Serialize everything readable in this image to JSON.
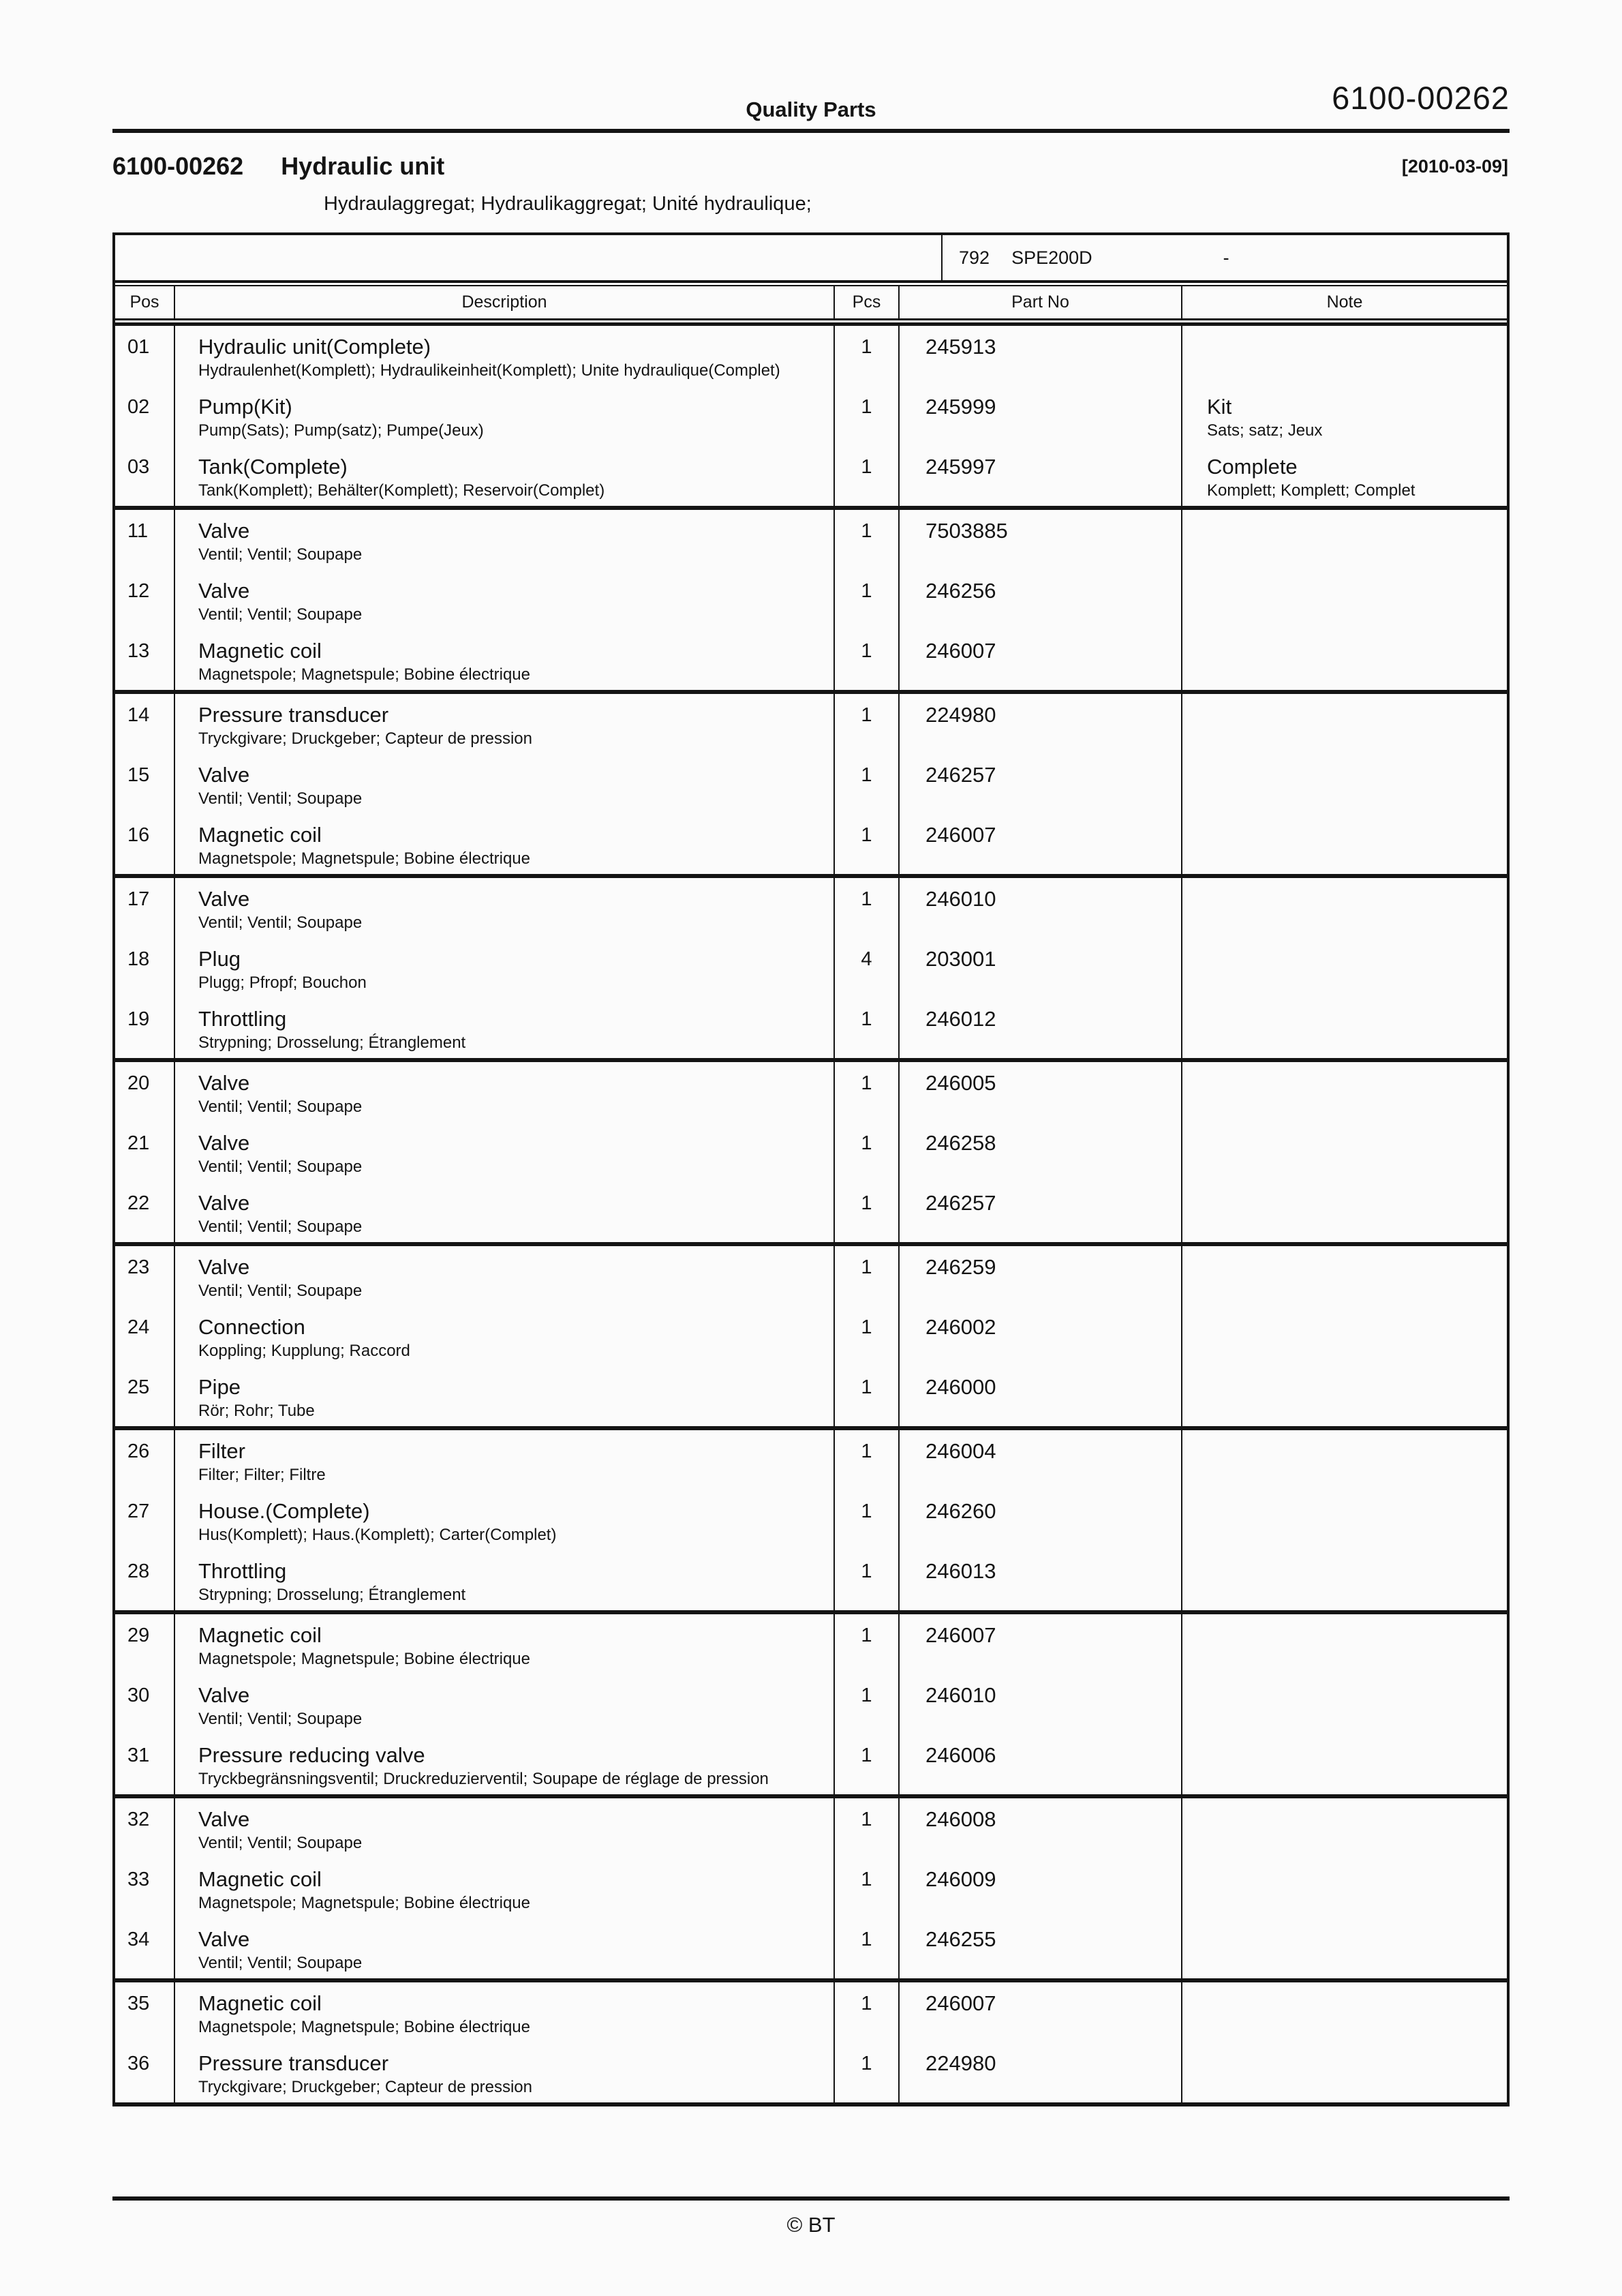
{
  "page": {
    "header_center": "Quality Parts",
    "header_doc_no": "6100-00262",
    "title_no": "6100-00262",
    "title": "Hydraulic unit",
    "title_date": "[2010-03-09]",
    "subtitle": "Hydraulaggregat; Hydraulikaggregat; Unité hydraulique;",
    "footer": "© BT"
  },
  "table": {
    "model": {
      "code": "792",
      "name": "SPE200D",
      "dash": "-"
    },
    "columns": {
      "pos": "Pos",
      "description": "Description",
      "pcs": "Pcs",
      "part_no": "Part No",
      "note": "Note"
    },
    "rows": [
      {
        "pos": "01",
        "desc": "Hydraulic unit(Complete)",
        "sub": "Hydraulenhet(Komplett); Hydraulikeinheit(Komplett); Unite hydraulique(Complet)",
        "pcs": "1",
        "part": "245913"
      },
      {
        "pos": "02",
        "desc": "Pump(Kit)",
        "sub": "Pump(Sats); Pump(satz); Pumpe(Jeux)",
        "pcs": "1",
        "part": "245999",
        "note": "Kit",
        "note_sub": "Sats; satz; Jeux"
      },
      {
        "pos": "03",
        "desc": "Tank(Complete)",
        "sub": "Tank(Komplett); Behälter(Komplett); Reservoir(Complet)",
        "pcs": "1",
        "part": "245997",
        "note": "Complete",
        "note_sub": "Komplett; Komplett; Complet"
      },
      {
        "pos": "11",
        "desc": "Valve",
        "sub": "Ventil; Ventil; Soupape",
        "pcs": "1",
        "part": "7503885"
      },
      {
        "pos": "12",
        "desc": "Valve",
        "sub": "Ventil; Ventil; Soupape",
        "pcs": "1",
        "part": "246256"
      },
      {
        "pos": "13",
        "desc": "Magnetic coil",
        "sub": "Magnetspole; Magnetspule; Bobine électrique",
        "pcs": "1",
        "part": "246007"
      },
      {
        "pos": "14",
        "desc": "Pressure transducer",
        "sub": "Tryckgivare; Druckgeber; Capteur de pression",
        "pcs": "1",
        "part": "224980"
      },
      {
        "pos": "15",
        "desc": "Valve",
        "sub": "Ventil; Ventil; Soupape",
        "pcs": "1",
        "part": "246257"
      },
      {
        "pos": "16",
        "desc": "Magnetic coil",
        "sub": "Magnetspole; Magnetspule; Bobine électrique",
        "pcs": "1",
        "part": "246007"
      },
      {
        "pos": "17",
        "desc": "Valve",
        "sub": "Ventil; Ventil; Soupape",
        "pcs": "1",
        "part": "246010"
      },
      {
        "pos": "18",
        "desc": "Plug",
        "sub": "Plugg; Pfropf; Bouchon",
        "pcs": "4",
        "part": "203001"
      },
      {
        "pos": "19",
        "desc": "Throttling",
        "sub": "Strypning; Drosselung; Étranglement",
        "pcs": "1",
        "part": "246012"
      },
      {
        "pos": "20",
        "desc": "Valve",
        "sub": "Ventil; Ventil; Soupape",
        "pcs": "1",
        "part": "246005"
      },
      {
        "pos": "21",
        "desc": "Valve",
        "sub": "Ventil; Ventil; Soupape",
        "pcs": "1",
        "part": "246258"
      },
      {
        "pos": "22",
        "desc": "Valve",
        "sub": "Ventil; Ventil; Soupape",
        "pcs": "1",
        "part": "246257"
      },
      {
        "pos": "23",
        "desc": "Valve",
        "sub": "Ventil; Ventil; Soupape",
        "pcs": "1",
        "part": "246259"
      },
      {
        "pos": "24",
        "desc": "Connection",
        "sub": "Koppling; Kupplung; Raccord",
        "pcs": "1",
        "part": "246002"
      },
      {
        "pos": "25",
        "desc": "Pipe",
        "sub": "Rör; Rohr; Tube",
        "pcs": "1",
        "part": "246000"
      },
      {
        "pos": "26",
        "desc": "Filter",
        "sub": "Filter; Filter; Filtre",
        "pcs": "1",
        "part": "246004"
      },
      {
        "pos": "27",
        "desc": "House.(Complete)",
        "sub": "Hus(Komplett); Haus.(Komplett); Carter(Complet)",
        "pcs": "1",
        "part": "246260"
      },
      {
        "pos": "28",
        "desc": "Throttling",
        "sub": "Strypning; Drosselung; Étranglement",
        "pcs": "1",
        "part": "246013"
      },
      {
        "pos": "29",
        "desc": "Magnetic coil",
        "sub": "Magnetspole; Magnetspule; Bobine électrique",
        "pcs": "1",
        "part": "246007"
      },
      {
        "pos": "30",
        "desc": "Valve",
        "sub": "Ventil; Ventil; Soupape",
        "pcs": "1",
        "part": "246010"
      },
      {
        "pos": "31",
        "desc": "Pressure reducing valve",
        "sub": "Tryckbegränsningsventil; Druckreduzierventil; Soupape de réglage de pression",
        "pcs": "1",
        "part": "246006"
      },
      {
        "pos": "32",
        "desc": "Valve",
        "sub": "Ventil; Ventil; Soupape",
        "pcs": "1",
        "part": "246008"
      },
      {
        "pos": "33",
        "desc": "Magnetic coil",
        "sub": "Magnetspole; Magnetspule; Bobine électrique",
        "pcs": "1",
        "part": "246009"
      },
      {
        "pos": "34",
        "desc": "Valve",
        "sub": "Ventil; Ventil; Soupape",
        "pcs": "1",
        "part": "246255"
      },
      {
        "pos": "35",
        "desc": "Magnetic coil",
        "sub": "Magnetspole; Magnetspule; Bobine électrique",
        "pcs": "1",
        "part": "246007"
      },
      {
        "pos": "36",
        "desc": "Pressure transducer",
        "sub": "Tryckgivare; Druckgeber; Capteur de pression",
        "pcs": "1",
        "part": "224980"
      }
    ]
  }
}
